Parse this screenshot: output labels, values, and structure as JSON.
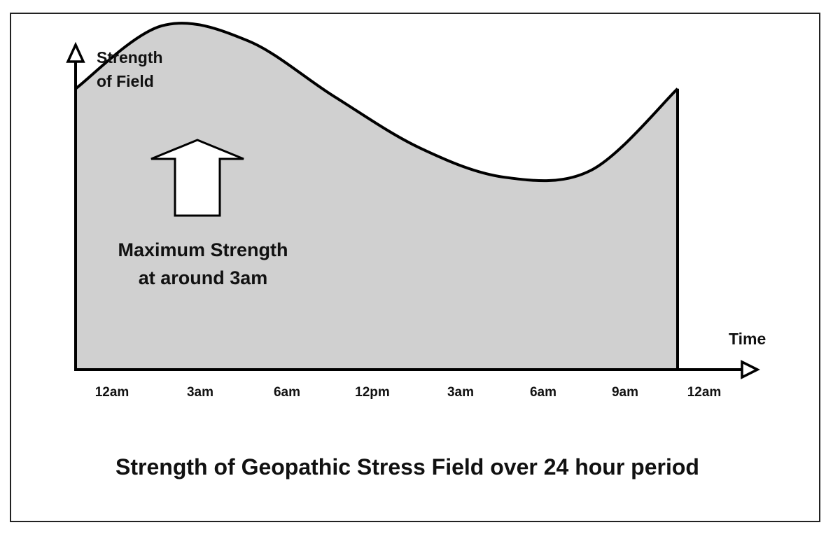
{
  "chart_data": {
    "type": "area",
    "title": "Strength of Geopathic Stress Field over 24 hour period",
    "ylabel_lines": [
      "Strength",
      "of Field"
    ],
    "xlabel": "Time",
    "x_tick_labels": [
      "12am",
      "3am",
      "6am",
      "12pm",
      "3am",
      "6am",
      "9am",
      "12am"
    ],
    "y_tick_labels": [],
    "series": [
      {
        "x": [
          "12am",
          "3am",
          "6am",
          "12pm",
          "3am",
          "6am",
          "9am",
          "12am"
        ],
        "y": [
          0.76,
          0.93,
          0.89,
          0.74,
          0.6,
          0.52,
          0.54,
          0.76
        ]
      }
    ],
    "y_scale": "relative, no numeric ticks",
    "ylim": [
      0,
      1
    ],
    "annotation": {
      "lines": [
        "Maximum Strength",
        "at around 3am"
      ],
      "marker": "up-arrow",
      "points_to": "3am"
    },
    "legend": "none",
    "grid": false,
    "colors": {
      "fill": "#d0d0d0",
      "line": "#000000",
      "arrow_fill": "#ffffff"
    }
  }
}
